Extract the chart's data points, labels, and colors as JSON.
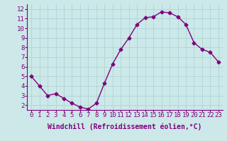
{
  "x": [
    0,
    1,
    2,
    3,
    4,
    5,
    6,
    7,
    8,
    9,
    10,
    11,
    12,
    13,
    14,
    15,
    16,
    17,
    18,
    19,
    20,
    21,
    22,
    23
  ],
  "y": [
    5.0,
    4.0,
    3.0,
    3.2,
    2.7,
    2.2,
    1.8,
    1.6,
    2.2,
    4.3,
    6.3,
    7.8,
    9.0,
    10.4,
    11.1,
    11.2,
    11.7,
    11.6,
    11.2,
    10.4,
    8.5,
    7.8,
    7.5,
    6.5
  ],
  "line_color": "#800080",
  "marker": "D",
  "marker_size": 2.5,
  "bg_color": "#cce8e8",
  "grid_color": "#b0d4d4",
  "xlabel": "Windchill (Refroidissement éolien,°C)",
  "xlabel_fontsize": 7,
  "ylabel_ticks": [
    2,
    3,
    4,
    5,
    6,
    7,
    8,
    9,
    10,
    11,
    12
  ],
  "xtick_labels": [
    "0",
    "1",
    "2",
    "3",
    "4",
    "5",
    "6",
    "7",
    "8",
    "9",
    "10",
    "11",
    "12",
    "13",
    "14",
    "15",
    "16",
    "17",
    "18",
    "19",
    "20",
    "21",
    "22",
    "23"
  ],
  "ylim": [
    1.5,
    12.5
  ],
  "xlim": [
    -0.5,
    23.5
  ],
  "tick_fontsize": 6.5,
  "line_width": 1.0,
  "xlabel_fontweight": "bold"
}
